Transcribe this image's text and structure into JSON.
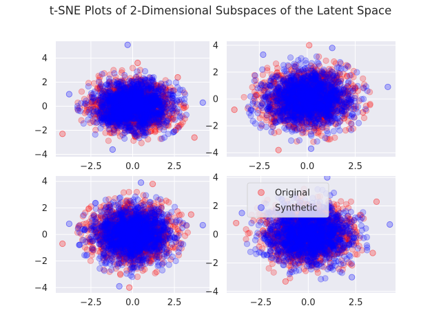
{
  "title": "t-SNE Plots of 2-Dimensional Subspaces of the Latent Space",
  "colors": {
    "original": "#ff0000",
    "synthetic": "#0000ff",
    "panel_bg": "#eaeaf2",
    "grid": "#ffffff"
  },
  "chart_data": [
    {
      "type": "scatter",
      "panel": "top-left",
      "xlim": [
        -4.6,
        4.6
      ],
      "ylim": [
        -4.2,
        5.4
      ],
      "xticks": [
        -2.5,
        0,
        2.5
      ],
      "xtick_labels": [
        "−2.5",
        "0.0",
        "2.5"
      ],
      "yticks": [
        -4,
        -2,
        0,
        2,
        4
      ],
      "ytick_labels": [
        "−4",
        "−2",
        "0",
        "2",
        "4"
      ],
      "grid": true,
      "series": [
        {
          "color": "#ff0000",
          "center": [
            0,
            0
          ],
          "spread": [
            1.15,
            1.0
          ],
          "count": 1400,
          "outliers": [
            [
              -4.2,
              -2.3
            ],
            [
              3.7,
              -2.6
            ],
            [
              0.3,
              3.6
            ],
            [
              2.7,
              2.4
            ]
          ]
        },
        {
          "color": "#0000ff",
          "center": [
            0,
            0
          ],
          "spread": [
            1.15,
            1.0
          ],
          "count": 1400,
          "outliers": [
            [
              -0.3,
              5.1
            ],
            [
              4.2,
              0.3
            ],
            [
              -3.8,
              1.0
            ],
            [
              -1.2,
              -3.6
            ]
          ]
        }
      ]
    },
    {
      "type": "scatter",
      "panel": "top-right",
      "xlim": [
        -4.2,
        4.6
      ],
      "ylim": [
        -4.3,
        4.3
      ],
      "xticks": [
        -2.5,
        0,
        2.5
      ],
      "xtick_labels": [
        "−2.5",
        "0.0",
        "2.5"
      ],
      "yticks": [
        -4,
        -2,
        0,
        2,
        4
      ],
      "ytick_labels": [
        "−4",
        "−2",
        "0",
        "2",
        "4"
      ],
      "grid": true,
      "series": [
        {
          "color": "#ff0000",
          "center": [
            0,
            0
          ],
          "spread": [
            1.1,
            1.05
          ],
          "count": 1400,
          "outliers": [
            [
              -3.8,
              -0.8
            ],
            [
              0.1,
              4.0
            ],
            [
              -1.5,
              -3.8
            ],
            [
              2.9,
              -1.0
            ]
          ]
        },
        {
          "color": "#0000ff",
          "center": [
            0,
            0
          ],
          "spread": [
            1.1,
            1.05
          ],
          "count": 1400,
          "outliers": [
            [
              4.2,
              0.9
            ],
            [
              1.3,
              3.8
            ],
            [
              -2.3,
              3.3
            ],
            [
              0.2,
              -3.7
            ]
          ]
        }
      ]
    },
    {
      "type": "scatter",
      "panel": "bottom-left",
      "xlim": [
        -4.6,
        4.6
      ],
      "ylim": [
        -4.4,
        4.4
      ],
      "xticks": [
        -2.5,
        0,
        2.5
      ],
      "xtick_labels": [
        "−2.5",
        "0.0",
        "2.5"
      ],
      "yticks": [
        -4,
        -2,
        0,
        2,
        4
      ],
      "ytick_labels": [
        "−4",
        "−2",
        "0",
        "2",
        "4"
      ],
      "grid": true,
      "series": [
        {
          "color": "#ff0000",
          "center": [
            0,
            0
          ],
          "spread": [
            1.15,
            1.05
          ],
          "count": 1400,
          "outliers": [
            [
              -4.2,
              -0.7
            ],
            [
              -0.2,
              -4.0
            ],
            [
              3.5,
              1.5
            ],
            [
              1.2,
              3.8
            ]
          ]
        },
        {
          "color": "#0000ff",
          "center": [
            0,
            0
          ],
          "spread": [
            1.15,
            1.05
          ],
          "count": 1400,
          "outliers": [
            [
              4.2,
              0.7
            ],
            [
              -3.8,
              0.8
            ],
            [
              0.5,
              3.9
            ],
            [
              -0.8,
              -3.9
            ]
          ]
        }
      ]
    },
    {
      "type": "scatter",
      "panel": "bottom-right",
      "xlim": [
        -4.3,
        4.6
      ],
      "ylim": [
        -4.1,
        4.1
      ],
      "xticks": [
        -2.5,
        0,
        2.5
      ],
      "xtick_labels": [
        "−2.5",
        "0.0",
        "2.5"
      ],
      "yticks": [
        -4,
        -2,
        0,
        2,
        4
      ],
      "ytick_labels": [
        "−4",
        "−2",
        "0",
        "2",
        "4"
      ],
      "grid": true,
      "legend": {
        "position": "upper-left",
        "entries": [
          {
            "label": "Original",
            "color": "#ff0000"
          },
          {
            "label": "Synthetic",
            "color": "#0000ff"
          }
        ]
      },
      "series": [
        {
          "color": "#ff0000",
          "center": [
            0,
            0
          ],
          "spread": [
            1.1,
            1.0
          ],
          "count": 1400,
          "outliers": [
            [
              -3.8,
              0.8
            ],
            [
              3.6,
              2.3
            ],
            [
              -1.2,
              -3.3
            ],
            [
              3.4,
              -1.3
            ]
          ]
        },
        {
          "color": "#0000ff",
          "center": [
            0,
            0
          ],
          "spread": [
            1.1,
            1.0
          ],
          "count": 1400,
          "outliers": [
            [
              4.3,
              0.7
            ],
            [
              1.0,
              4.0
            ],
            [
              -3.5,
              1.5
            ],
            [
              2.3,
              -3.0
            ]
          ]
        }
      ]
    }
  ]
}
